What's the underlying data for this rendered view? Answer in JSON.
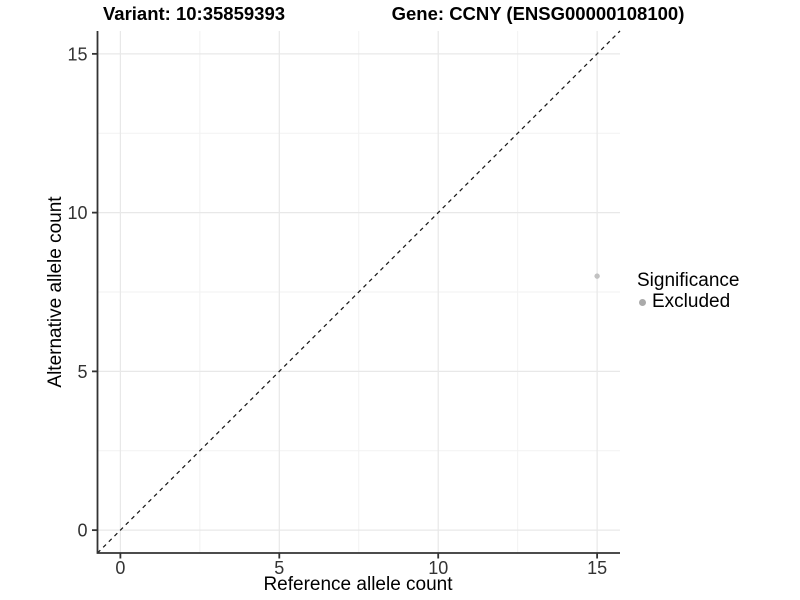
{
  "chart_data": {
    "type": "scatter",
    "title_variant": "Variant: 10:35859393",
    "title_gene": "Gene: CCNY (ENSG00000108100)",
    "xlabel": "Reference allele count",
    "ylabel": "Alternative allele count",
    "xlim": [
      -0.72,
      15.72
    ],
    "ylim": [
      -0.72,
      15.72
    ],
    "xticks": [
      0,
      5,
      10,
      15
    ],
    "yticks": [
      0,
      5,
      10,
      15
    ],
    "xticks_minor": [
      2.5,
      7.5,
      12.5
    ],
    "yticks_minor": [
      2.5,
      7.5,
      12.5
    ],
    "grid": "major+minor",
    "points": [
      {
        "x": 15,
        "y": 8,
        "significance": "Excluded"
      }
    ],
    "reference_line": {
      "equation": "y = x",
      "style": "dashed"
    },
    "legend": {
      "title": "Significance",
      "position": "right",
      "entries": [
        {
          "label": "Excluded",
          "color": "#aaaaaa"
        }
      ]
    }
  },
  "colors": {
    "background": "#ffffff",
    "axis": "#333333",
    "tick_label": "#333333",
    "grid_major": "#e8e8e8",
    "grid_minor": "#f2f2f2",
    "identity_line": "#1a1a1a",
    "point": "#c2c2c2",
    "legend_point": "#aaaaaa"
  }
}
